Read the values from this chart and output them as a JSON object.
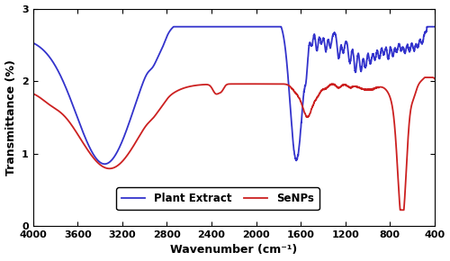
{
  "xlabel": "Wavenumber (cm⁻¹)",
  "ylabel": "Transmittance (%)",
  "xlim": [
    4000,
    400
  ],
  "ylim": [
    0,
    3
  ],
  "xticks": [
    4000,
    3600,
    3200,
    2800,
    2400,
    2000,
    1600,
    1200,
    800,
    400
  ],
  "yticks": [
    0,
    1,
    2,
    3
  ],
  "blue_color": "#3333CC",
  "red_color": "#CC2020",
  "legend_labels": [
    "Plant Extract",
    "SeNPs"
  ],
  "background_color": "#ffffff",
  "linewidth": 1.3
}
